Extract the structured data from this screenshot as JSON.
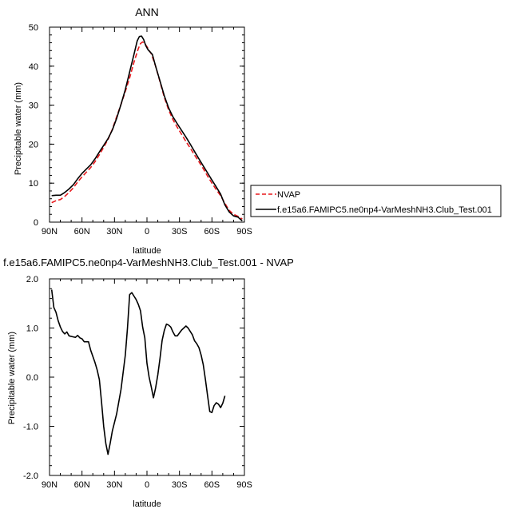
{
  "chart_data": [
    {
      "type": "line",
      "title": "ANN",
      "xlabel": "latitude",
      "ylabel": "Precipitable water (mm)",
      "x_tick_labels": [
        "90N",
        "60N",
        "30N",
        "0",
        "30S",
        "60S",
        "90S"
      ],
      "x_ticks": [
        90,
        60,
        30,
        0,
        -30,
        -60,
        -90
      ],
      "xlim": [
        90,
        -90
      ],
      "y_ticks": [
        "0",
        "10",
        "20",
        "30",
        "40",
        "50"
      ],
      "y_tick_values": [
        0,
        10,
        20,
        30,
        40,
        50
      ],
      "ylim": [
        0,
        50
      ],
      "grid": false,
      "legend_position": "outside-right",
      "series": [
        {
          "name": "NVAP",
          "color": "#e8191d",
          "dash": "dashed",
          "points": [
            [
              88,
              5.0
            ],
            [
              84,
              5.5
            ],
            [
              80,
              5.8
            ],
            [
              76,
              6.6
            ],
            [
              72,
              7.6
            ],
            [
              68,
              8.8
            ],
            [
              64,
              10.3
            ],
            [
              60,
              11.6
            ],
            [
              56,
              12.8
            ],
            [
              52,
              14.0
            ],
            [
              48,
              15.5
            ],
            [
              44,
              17.3
            ],
            [
              40,
              19.2
            ],
            [
              36,
              21.2
            ],
            [
              32,
              23.8
            ],
            [
              28,
              27.0
            ],
            [
              24,
              30.2
            ],
            [
              20,
              33.5
            ],
            [
              16,
              37.0
            ],
            [
              12,
              41.0
            ],
            [
              8,
              44.5
            ],
            [
              6,
              45.8
            ],
            [
              4,
              46.2
            ],
            [
              2,
              45.8
            ],
            [
              0,
              45.0
            ],
            [
              -2,
              44.0
            ],
            [
              -4,
              43.2
            ],
            [
              -8,
              40.0
            ],
            [
              -12,
              36.0
            ],
            [
              -16,
              32.0
            ],
            [
              -20,
              28.8
            ],
            [
              -24,
              26.3
            ],
            [
              -28,
              24.3
            ],
            [
              -32,
              22.5
            ],
            [
              -36,
              20.7
            ],
            [
              -40,
              19.0
            ],
            [
              -44,
              17.2
            ],
            [
              -48,
              15.5
            ],
            [
              -52,
              13.7
            ],
            [
              -56,
              11.8
            ],
            [
              -60,
              10.0
            ],
            [
              -64,
              8.3
            ],
            [
              -68,
              6.8
            ],
            [
              -72,
              4.8
            ],
            [
              -76,
              3.0
            ],
            [
              -80,
              2.0
            ],
            [
              -84,
              1.5
            ],
            [
              -88,
              0.8
            ]
          ]
        },
        {
          "name": "f.e15a6.FAMIPC5.ne0np4-VarMeshNH3.Club_Test.001",
          "color": "#000000",
          "dash": "solid",
          "points": [
            [
              88,
              6.8
            ],
            [
              84,
              6.9
            ],
            [
              80,
              6.9
            ],
            [
              76,
              7.6
            ],
            [
              72,
              8.5
            ],
            [
              68,
              9.6
            ],
            [
              64,
              11.1
            ],
            [
              60,
              12.5
            ],
            [
              56,
              13.6
            ],
            [
              52,
              14.7
            ],
            [
              48,
              16.2
            ],
            [
              44,
              18.0
            ],
            [
              40,
              19.7
            ],
            [
              36,
              21.4
            ],
            [
              32,
              23.6
            ],
            [
              28,
              26.6
            ],
            [
              24,
              30.2
            ],
            [
              20,
              34.0
            ],
            [
              16,
              38.5
            ],
            [
              12,
              43.0
            ],
            [
              9,
              46.5
            ],
            [
              7,
              47.6
            ],
            [
              5,
              47.7
            ],
            [
              3,
              46.8
            ],
            [
              1,
              45.2
            ],
            [
              -1,
              44.2
            ],
            [
              -3,
              43.6
            ],
            [
              -5,
              43.0
            ],
            [
              -8,
              40.0
            ],
            [
              -12,
              36.2
            ],
            [
              -16,
              32.4
            ],
            [
              -20,
              29.3
            ],
            [
              -24,
              27.0
            ],
            [
              -28,
              25.2
            ],
            [
              -32,
              23.5
            ],
            [
              -36,
              21.8
            ],
            [
              -40,
              20.0
            ],
            [
              -44,
              18.1
            ],
            [
              -48,
              16.2
            ],
            [
              -52,
              14.4
            ],
            [
              -56,
              12.6
            ],
            [
              -60,
              10.8
            ],
            [
              -64,
              9.0
            ],
            [
              -68,
              7.2
            ],
            [
              -72,
              4.4
            ],
            [
              -76,
              2.6
            ],
            [
              -80,
              1.6
            ],
            [
              -84,
              1.3
            ],
            [
              -88,
              0.3
            ]
          ]
        }
      ]
    },
    {
      "type": "line",
      "title": "f.e15a6.FAMIPC5.ne0np4-VarMeshNH3.Club_Test.001 - NVAP",
      "xlabel": "latitude",
      "ylabel": "Precipitable water (mm)",
      "x_tick_labels": [
        "90N",
        "60N",
        "30N",
        "0",
        "30S",
        "60S",
        "90S"
      ],
      "x_ticks": [
        90,
        60,
        30,
        0,
        -30,
        -60,
        -90
      ],
      "xlim": [
        90,
        -90
      ],
      "y_ticks": [
        "-2.0",
        "-1.0",
        "0.0",
        "1.0",
        "2.0"
      ],
      "y_tick_values": [
        -2,
        -1,
        0,
        1,
        2
      ],
      "ylim": [
        -2,
        2
      ],
      "grid": false,
      "series": [
        {
          "color": "#000000",
          "dash": "solid",
          "points": [
            [
              88,
              1.78
            ],
            [
              86,
              1.42
            ],
            [
              84,
              1.32
            ],
            [
              82,
              1.15
            ],
            [
              80,
              1.02
            ],
            [
              78,
              0.93
            ],
            [
              76,
              0.88
            ],
            [
              74,
              0.92
            ],
            [
              72,
              0.84
            ],
            [
              68,
              0.82
            ],
            [
              66,
              0.81
            ],
            [
              64,
              0.85
            ],
            [
              62,
              0.8
            ],
            [
              60,
              0.78
            ],
            [
              58,
              0.72
            ],
            [
              54,
              0.72
            ],
            [
              52,
              0.55
            ],
            [
              48,
              0.3
            ],
            [
              46,
              0.15
            ],
            [
              44,
              -0.05
            ],
            [
              42,
              -0.5
            ],
            [
              40,
              -1.0
            ],
            [
              38,
              -1.35
            ],
            [
              36,
              -1.57
            ],
            [
              34,
              -1.35
            ],
            [
              32,
              -1.1
            ],
            [
              28,
              -0.75
            ],
            [
              24,
              -0.25
            ],
            [
              20,
              0.45
            ],
            [
              18,
              1.0
            ],
            [
              16,
              1.68
            ],
            [
              14,
              1.72
            ],
            [
              12,
              1.65
            ],
            [
              10,
              1.58
            ],
            [
              8,
              1.48
            ],
            [
              6,
              1.35
            ],
            [
              4,
              1.02
            ],
            [
              2,
              0.8
            ],
            [
              0,
              0.28
            ],
            [
              -2,
              0.0
            ],
            [
              -4,
              -0.2
            ],
            [
              -6,
              -0.42
            ],
            [
              -8,
              -0.22
            ],
            [
              -10,
              0.05
            ],
            [
              -12,
              0.38
            ],
            [
              -14,
              0.75
            ],
            [
              -16,
              0.95
            ],
            [
              -18,
              1.08
            ],
            [
              -20,
              1.06
            ],
            [
              -22,
              1.02
            ],
            [
              -24,
              0.92
            ],
            [
              -26,
              0.84
            ],
            [
              -28,
              0.84
            ],
            [
              -30,
              0.9
            ],
            [
              -32,
              0.96
            ],
            [
              -34,
              1.0
            ],
            [
              -36,
              1.04
            ],
            [
              -38,
              1.0
            ],
            [
              -40,
              0.93
            ],
            [
              -42,
              0.86
            ],
            [
              -44,
              0.74
            ],
            [
              -46,
              0.68
            ],
            [
              -48,
              0.6
            ],
            [
              -50,
              0.45
            ],
            [
              -52,
              0.25
            ],
            [
              -54,
              -0.05
            ],
            [
              -56,
              -0.38
            ],
            [
              -58,
              -0.7
            ],
            [
              -60,
              -0.72
            ],
            [
              -62,
              -0.58
            ],
            [
              -64,
              -0.52
            ],
            [
              -66,
              -0.55
            ],
            [
              -68,
              -0.62
            ],
            [
              -70,
              -0.53
            ],
            [
              -72,
              -0.38
            ]
          ]
        }
      ]
    }
  ]
}
